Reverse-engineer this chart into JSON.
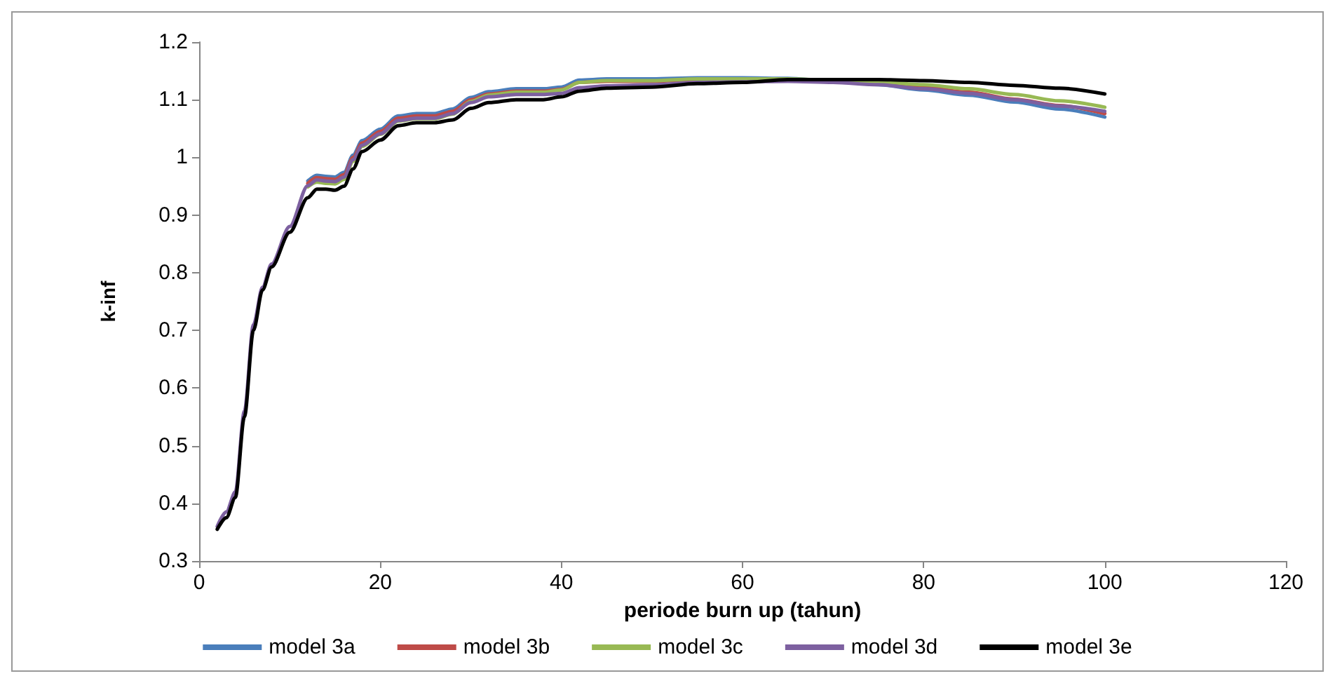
{
  "chart_data": {
    "type": "line",
    "xlabel": "periode burn up (tahun)",
    "ylabel": "k-inf",
    "x": [
      2,
      3,
      4,
      5,
      6,
      7,
      8,
      10,
      12,
      13,
      14,
      15,
      16,
      17,
      18,
      20,
      22,
      24,
      26,
      28,
      30,
      32,
      35,
      38,
      40,
      42,
      45,
      50,
      55,
      60,
      65,
      70,
      75,
      80,
      85,
      90,
      95,
      100
    ],
    "series": [
      {
        "name": "model 3a",
        "color": "#4a7ebb",
        "values": [
          null,
          null,
          null,
          null,
          null,
          null,
          null,
          null,
          0.959,
          0.969,
          0.967,
          0.966,
          0.974,
          1.004,
          1.029,
          1.049,
          1.072,
          1.076,
          1.076,
          1.084,
          1.104,
          1.114,
          1.119,
          1.119,
          1.122,
          1.134,
          1.136,
          1.136,
          1.138,
          1.138,
          1.137,
          1.132,
          1.126,
          1.117,
          1.108,
          1.096,
          1.084,
          1.07
        ]
      },
      {
        "name": "model 3b",
        "color": "#be4b48",
        "values": [
          null,
          null,
          null,
          null,
          null,
          null,
          null,
          null,
          0.955,
          0.965,
          0.963,
          0.962,
          0.97,
          1.0,
          1.025,
          1.045,
          1.068,
          1.072,
          1.072,
          1.08,
          1.1,
          1.11,
          1.115,
          1.115,
          1.118,
          1.13,
          1.132,
          1.132,
          1.135,
          1.135,
          1.135,
          1.132,
          1.128,
          1.121,
          1.113,
          1.101,
          1.09,
          1.076
        ]
      },
      {
        "name": "model 3c",
        "color": "#98b954",
        "values": [
          null,
          null,
          null,
          null,
          null,
          null,
          null,
          null,
          0.949,
          0.957,
          0.955,
          0.954,
          0.962,
          0.993,
          1.019,
          1.04,
          1.063,
          1.067,
          1.067,
          1.075,
          1.097,
          1.108,
          1.113,
          1.113,
          1.117,
          1.13,
          1.133,
          1.133,
          1.136,
          1.136,
          1.136,
          1.134,
          1.131,
          1.126,
          1.119,
          1.109,
          1.098,
          1.087
        ]
      },
      {
        "name": "model 3d",
        "color": "#7d60a0",
        "values": [
          0.36,
          0.385,
          0.42,
          0.56,
          0.71,
          0.775,
          0.815,
          0.88,
          0.951,
          0.961,
          0.959,
          0.958,
          0.966,
          0.996,
          1.021,
          1.041,
          1.064,
          1.068,
          1.068,
          1.076,
          1.095,
          1.105,
          1.109,
          1.109,
          1.111,
          1.121,
          1.124,
          1.126,
          1.13,
          1.131,
          1.132,
          1.13,
          1.126,
          1.119,
          1.111,
          1.1,
          1.089,
          1.08
        ]
      },
      {
        "name": "model 3e",
        "color": "#000000",
        "values": [
          0.355,
          0.375,
          0.41,
          0.55,
          0.7,
          0.77,
          0.81,
          0.87,
          0.93,
          0.945,
          0.945,
          0.943,
          0.95,
          0.98,
          1.01,
          1.03,
          1.055,
          1.06,
          1.06,
          1.065,
          1.085,
          1.095,
          1.1,
          1.1,
          1.105,
          1.115,
          1.12,
          1.122,
          1.128,
          1.13,
          1.135,
          1.135,
          1.135,
          1.133,
          1.13,
          1.125,
          1.12,
          1.11
        ]
      }
    ],
    "xlim": [
      0,
      120
    ],
    "xticks": [
      0,
      20,
      40,
      60,
      80,
      100,
      120
    ],
    "ylim": [
      0.3,
      1.2
    ],
    "yticks": [
      0.3,
      0.4,
      0.5,
      0.6,
      0.7,
      0.8,
      0.9,
      1,
      1.1,
      1.2
    ],
    "grid": false,
    "legend": "bottom",
    "marker": "none",
    "line_style": "solid"
  }
}
